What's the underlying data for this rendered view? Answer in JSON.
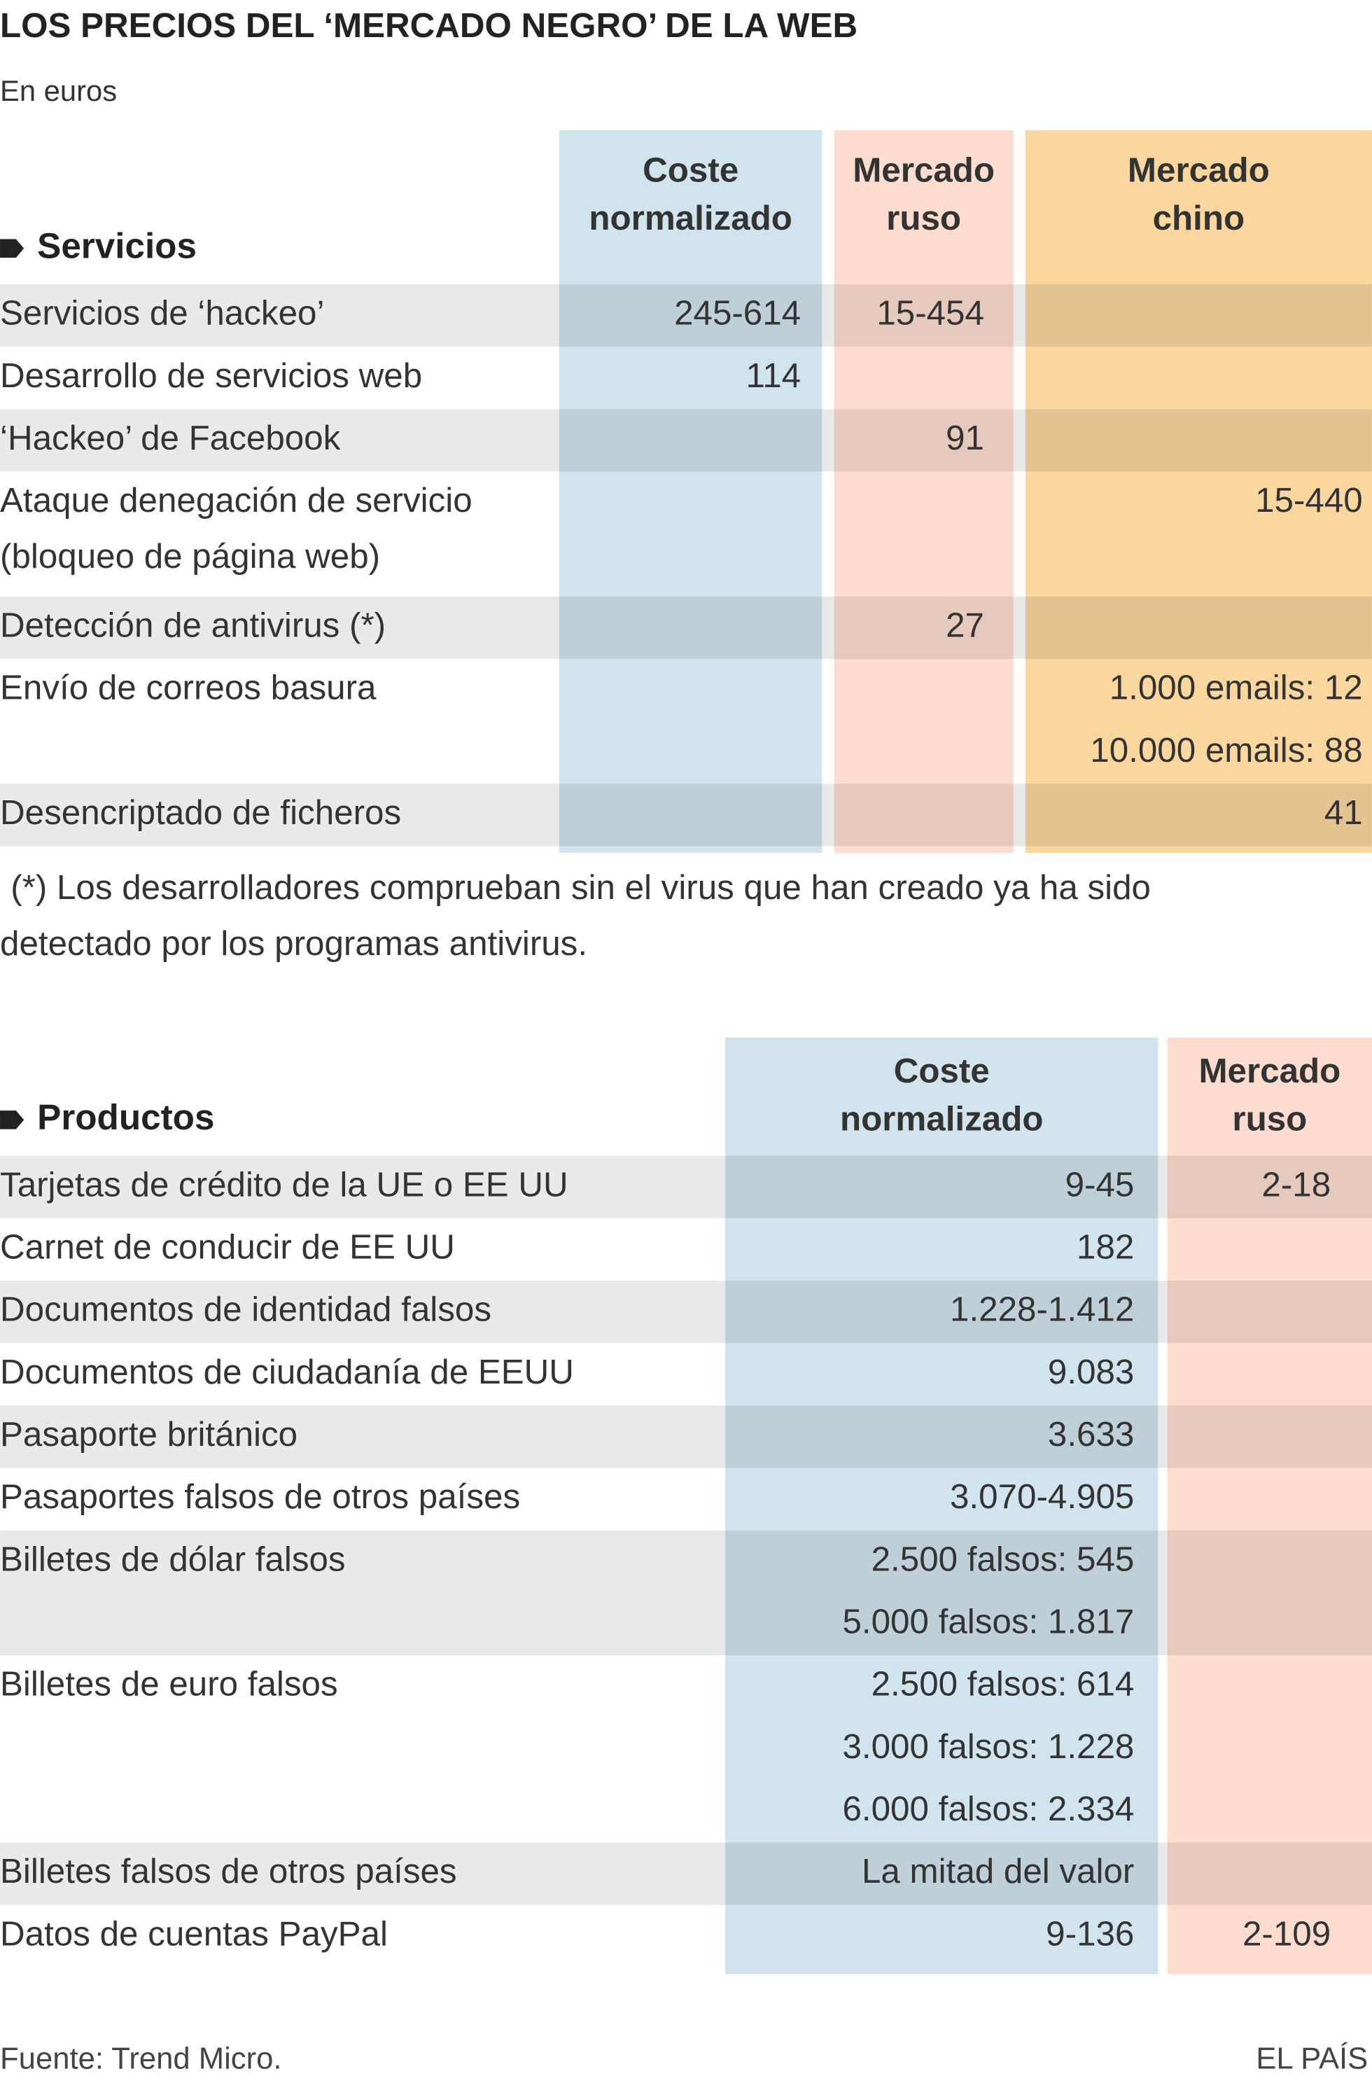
{
  "header": {
    "title": "LOS PRECIOS DEL ‘MERCADO NEGRO’ DE LA WEB",
    "subtitle": "En euros"
  },
  "services": {
    "section": "Servicios",
    "columns": [
      [
        "Coste",
        "normalizado"
      ],
      [
        "Mercado",
        "ruso"
      ],
      [
        "Mercado",
        "chino"
      ]
    ],
    "rows": [
      {
        "label": [
          "Servicios de ‘hackeo’"
        ],
        "cells": [
          [
            "245-614"
          ],
          [
            "15-454"
          ],
          []
        ]
      },
      {
        "label": [
          "Desarrollo de servicios web"
        ],
        "cells": [
          [
            "114"
          ],
          [],
          []
        ]
      },
      {
        "label": [
          "‘Hackeo’ de Facebook"
        ],
        "cells": [
          [],
          [
            "91"
          ],
          []
        ]
      },
      {
        "label": [
          "Ataque denegación de servicio",
          "(bloqueo de página web)"
        ],
        "cells": [
          [],
          [],
          [
            "15-440"
          ]
        ]
      },
      {
        "label": [
          "Detección de antivirus (*)"
        ],
        "cells": [
          [],
          [
            "27"
          ],
          []
        ]
      },
      {
        "label": [
          "Envío de correos basura"
        ],
        "cells": [
          [],
          [],
          [
            "1.000 emails: 12",
            "10.000 emails: 88"
          ]
        ]
      },
      {
        "label": [
          "Desencriptado de ficheros"
        ],
        "cells": [
          [],
          [],
          [
            "41"
          ]
        ]
      }
    ],
    "footnote": [
      "(*) Los desarrolladores comprueban sin el virus que han creado ya ha sido",
      "detectado por los programas antivirus."
    ]
  },
  "products": {
    "section": "Productos",
    "columns": [
      [
        "Coste",
        "normalizado"
      ],
      [
        "Mercado",
        "ruso"
      ]
    ],
    "rows": [
      {
        "label": [
          "Tarjetas de crédito de la UE o EE UU"
        ],
        "cells": [
          [
            "9-45"
          ],
          [
            "2-18"
          ]
        ]
      },
      {
        "label": [
          "Carnet de conducir de EE UU"
        ],
        "cells": [
          [
            "182"
          ],
          []
        ]
      },
      {
        "label": [
          "Documentos de identidad falsos"
        ],
        "cells": [
          [
            "1.228-1.412"
          ],
          []
        ]
      },
      {
        "label": [
          "Documentos de ciudadanía de EEUU"
        ],
        "cells": [
          [
            "9.083"
          ],
          []
        ]
      },
      {
        "label": [
          "Pasaporte británico"
        ],
        "cells": [
          [
            "3.633"
          ],
          []
        ]
      },
      {
        "label": [
          "Pasaportes falsos de otros países"
        ],
        "cells": [
          [
            "3.070-4.905"
          ],
          []
        ]
      },
      {
        "label": [
          "Billetes de dólar falsos"
        ],
        "cells": [
          [
            "2.500 falsos: 545",
            "5.000 falsos: 1.817"
          ],
          []
        ]
      },
      {
        "label": [
          "Billetes de euro falsos"
        ],
        "cells": [
          [
            "2.500 falsos: 614",
            "3.000 falsos: 1.228",
            "6.000 falsos: 2.334"
          ],
          []
        ]
      },
      {
        "label": [
          "Billetes falsos de otros países"
        ],
        "cells": [
          [
            "La mitad del valor"
          ],
          []
        ]
      },
      {
        "label": [
          "Datos de cuentas PayPal"
        ],
        "cells": [
          [
            "9-136"
          ],
          [
            "2-109"
          ]
        ]
      }
    ]
  },
  "footer": {
    "source": "Fuente: Trend Micro.",
    "credit": "EL PAÍS"
  }
}
